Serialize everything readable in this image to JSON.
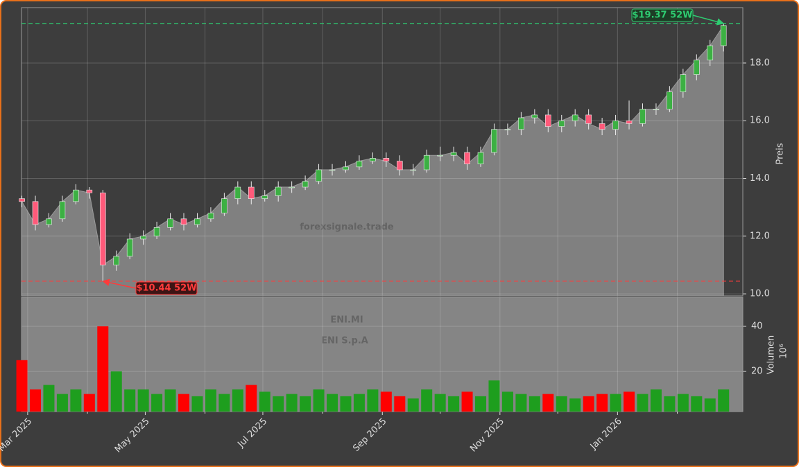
{
  "chart_data": {
    "type": "candlestick",
    "x": [
      -3,
      4,
      11,
      18,
      25,
      32,
      39,
      46,
      53,
      60,
      67,
      74,
      81,
      88,
      95,
      102,
      109,
      116,
      123,
      130,
      137,
      144,
      151,
      158,
      165,
      172,
      179,
      186,
      193,
      200,
      207,
      214,
      221,
      228,
      235,
      242,
      249,
      256,
      263,
      270,
      277,
      284,
      291,
      298,
      305,
      312,
      319,
      326,
      333,
      340,
      347,
      354,
      361
    ],
    "open": [
      13.3,
      13.2,
      12.4,
      12.6,
      13.2,
      13.6,
      13.5,
      11.0,
      11.3,
      11.9,
      12.0,
      12.3,
      12.6,
      12.4,
      12.6,
      12.8,
      13.3,
      13.7,
      13.3,
      13.4,
      13.7,
      13.7,
      13.9,
      14.3,
      14.3,
      14.4,
      14.6,
      14.7,
      14.6,
      14.3,
      14.3,
      14.8,
      14.8,
      14.9,
      14.5,
      14.9,
      15.7,
      15.7,
      16.1,
      16.2,
      15.8,
      16.0,
      16.2,
      15.9,
      15.7,
      16.0,
      15.9,
      16.4,
      16.4,
      17.0,
      17.6,
      18.1,
      18.6
    ],
    "high": [
      13.4,
      13.4,
      12.8,
      13.4,
      13.8,
      13.7,
      13.6,
      11.5,
      12.1,
      12.2,
      12.5,
      12.8,
      12.8,
      12.8,
      13.0,
      13.5,
      13.9,
      13.9,
      13.6,
      13.9,
      13.9,
      14.1,
      14.5,
      14.5,
      14.6,
      14.8,
      14.9,
      14.9,
      14.8,
      14.5,
      15.0,
      15.1,
      15.1,
      15.1,
      15.1,
      15.9,
      15.9,
      16.3,
      16.4,
      16.4,
      16.2,
      16.4,
      16.4,
      16.1,
      16.2,
      16.7,
      16.6,
      16.6,
      17.2,
      17.8,
      18.3,
      18.8,
      19.37
    ],
    "low": [
      13.0,
      12.2,
      12.3,
      12.5,
      13.1,
      13.3,
      10.44,
      10.8,
      11.2,
      11.7,
      11.9,
      12.2,
      12.2,
      12.3,
      12.5,
      12.7,
      13.1,
      13.1,
      13.2,
      13.2,
      13.5,
      13.6,
      13.8,
      14.1,
      14.2,
      14.3,
      14.5,
      14.4,
      14.1,
      14.1,
      14.2,
      14.6,
      14.6,
      14.3,
      14.4,
      14.8,
      15.5,
      15.5,
      15.9,
      15.6,
      15.6,
      15.8,
      15.7,
      15.5,
      15.5,
      15.7,
      15.8,
      16.2,
      16.3,
      16.8,
      17.4,
      17.9,
      18.4
    ],
    "close": [
      13.2,
      12.4,
      12.6,
      13.2,
      13.6,
      13.5,
      11.0,
      11.3,
      11.9,
      12.0,
      12.3,
      12.6,
      12.4,
      12.6,
      12.8,
      13.3,
      13.7,
      13.3,
      13.4,
      13.7,
      13.7,
      13.9,
      14.3,
      14.3,
      14.4,
      14.6,
      14.7,
      14.6,
      14.3,
      14.3,
      14.8,
      14.8,
      14.9,
      14.5,
      14.9,
      15.7,
      15.7,
      16.1,
      16.2,
      15.8,
      16.0,
      16.2,
      15.9,
      15.7,
      16.0,
      15.9,
      16.4,
      16.4,
      17.0,
      17.6,
      18.1,
      18.6,
      19.3
    ],
    "xlim": [
      -3.2,
      371
    ],
    "xticks": [
      {
        "value": 0,
        "label": "Mar 2025"
      },
      {
        "value": 61,
        "label": "May 2025"
      },
      {
        "value": 122,
        "label": "Jul 2025"
      },
      {
        "value": 184,
        "label": "Sep 2025"
      },
      {
        "value": 245,
        "label": "Nov 2025"
      },
      {
        "value": 306,
        "label": "Jan 2026"
      }
    ],
    "xminorticks": [
      31,
      92,
      153,
      214,
      275,
      337
    ],
    "ylim": [
      9.93,
      19.92
    ],
    "yticks": [
      {
        "value": 10,
        "label": "10.0"
      },
      {
        "value": 12,
        "label": "12.0"
      },
      {
        "value": 14,
        "label": "14.0"
      },
      {
        "value": 16,
        "label": "16.0"
      },
      {
        "value": 18,
        "label": "18.0"
      }
    ],
    "ylabel": "Preis",
    "grid": true,
    "up_color": "#3cb043",
    "down_color": "#ff5a7a",
    "area_color": "#808080",
    "volume": {
      "values": [
        25,
        12,
        14,
        10,
        12,
        10,
        40,
        20,
        12,
        12,
        10,
        12,
        10,
        9,
        12,
        10,
        12,
        14,
        11,
        9,
        10,
        9,
        12,
        10,
        9,
        10,
        12,
        11,
        9,
        8,
        12,
        10,
        9,
        11,
        9,
        16,
        11,
        10,
        9,
        10,
        9,
        8,
        9,
        10,
        10,
        11,
        10,
        12,
        9,
        10,
        9,
        8,
        12
      ],
      "ylim": [
        2.2,
        52.9
      ],
      "yticks": [
        20,
        40
      ],
      "ylabel": "Volumen",
      "scale_label": "10⁶",
      "up_color": "#1e9e1e",
      "down_color": "#ff0000"
    },
    "annotations": [
      {
        "text": "$19.37 52W",
        "value": 19.37,
        "x": 361,
        "color": "#2ecc71"
      },
      {
        "text": "$10.44 52W",
        "value": 10.44,
        "x": 39,
        "color": "#ff3b3b"
      }
    ],
    "watermark": "forexsignale.trade",
    "symbol": "ENI.MI",
    "company": "ENI S.p.A"
  }
}
